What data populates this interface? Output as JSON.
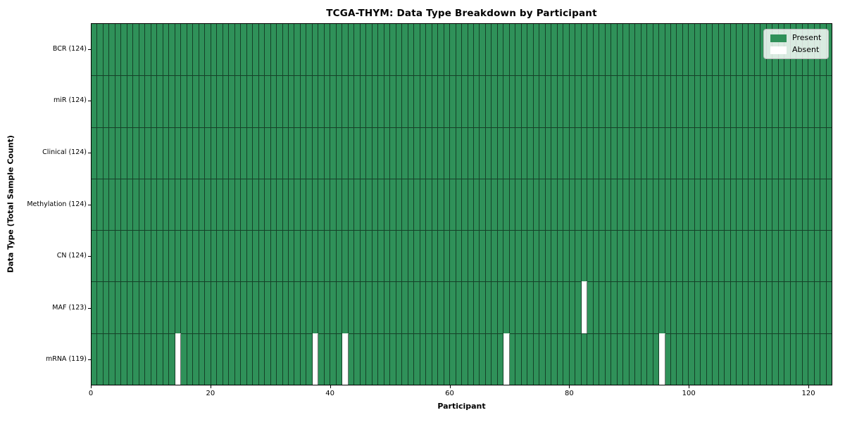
{
  "chart_data": {
    "type": "heatmap",
    "title": "TCGA-THYM: Data Type Breakdown by Participant",
    "xlabel": "Participant",
    "ylabel": "Data Type (Total Sample Count)",
    "x_ticks": [
      0,
      20,
      40,
      60,
      80,
      100,
      120
    ],
    "x_range": [
      0,
      124
    ],
    "n_participants": 124,
    "grid": false,
    "legend_position": "upper-right",
    "legend": [
      {
        "label": "Present",
        "color": "#2f9159"
      },
      {
        "label": "Absent",
        "color": "#ffffff"
      }
    ],
    "rows": [
      {
        "data_type": "BCR",
        "label": "BCR (124)",
        "total": 124,
        "absent_participants": []
      },
      {
        "data_type": "miR",
        "label": "miR (124)",
        "total": 124,
        "absent_participants": []
      },
      {
        "data_type": "Clinical",
        "label": "Clinical (124)",
        "total": 124,
        "absent_participants": []
      },
      {
        "data_type": "Methylation",
        "label": "Methylation (124)",
        "total": 124,
        "absent_participants": []
      },
      {
        "data_type": "CN",
        "label": "CN (124)",
        "total": 124,
        "absent_participants": []
      },
      {
        "data_type": "MAF",
        "label": "MAF (123)",
        "total": 123,
        "absent_participants": [
          82
        ]
      },
      {
        "data_type": "mRNA",
        "label": "mRNA (119)",
        "total": 119,
        "absent_participants": [
          14,
          37,
          42,
          69,
          95
        ]
      }
    ],
    "colors": {
      "present": "#2f9159",
      "absent": "#ffffff",
      "cell_edge": "rgba(0,0,0,0.55)",
      "axis": "#000000"
    }
  }
}
